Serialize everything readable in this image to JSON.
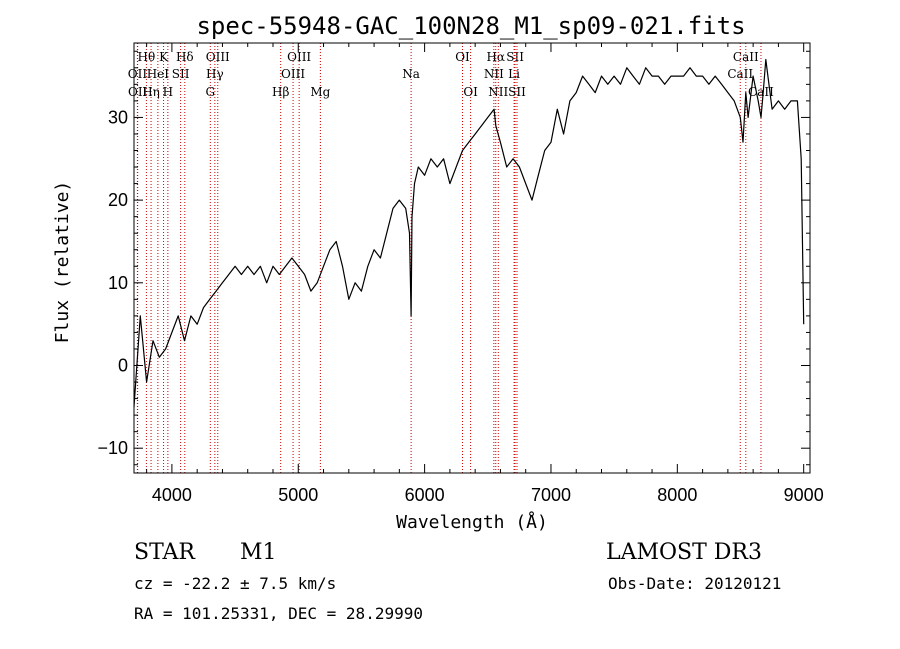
{
  "chart_data": {
    "type": "line",
    "title": "spec-55948-GAC_100N28_M1_sp09-021.fits",
    "xlabel": "Wavelength (Å)",
    "ylabel": "Flux (relative)",
    "xlim": [
      3700,
      9050
    ],
    "ylim": [
      -13,
      39
    ],
    "xticks": [
      4000,
      5000,
      6000,
      7000,
      8000,
      9000
    ],
    "yticks": [
      -10,
      0,
      10,
      20,
      30
    ],
    "series": [
      {
        "name": "flux",
        "color": "#000000",
        "x": [
          3700,
          3750,
          3800,
          3850,
          3900,
          3950,
          4000,
          4050,
          4100,
          4150,
          4200,
          4250,
          4300,
          4350,
          4400,
          4450,
          4500,
          4550,
          4600,
          4650,
          4700,
          4750,
          4800,
          4850,
          4900,
          4950,
          5000,
          5050,
          5100,
          5150,
          5200,
          5250,
          5300,
          5350,
          5400,
          5450,
          5500,
          5550,
          5600,
          5650,
          5700,
          5750,
          5800,
          5850,
          5880,
          5893,
          5900,
          5920,
          5950,
          6000,
          6050,
          6100,
          6150,
          6200,
          6250,
          6300,
          6350,
          6400,
          6450,
          6500,
          6550,
          6563,
          6600,
          6650,
          6700,
          6750,
          6800,
          6850,
          6900,
          6950,
          7000,
          7050,
          7100,
          7150,
          7200,
          7250,
          7300,
          7350,
          7400,
          7450,
          7500,
          7550,
          7600,
          7650,
          7700,
          7750,
          7800,
          7850,
          7900,
          7950,
          8000,
          8050,
          8100,
          8150,
          8200,
          8250,
          8300,
          8350,
          8400,
          8450,
          8498,
          8520,
          8542,
          8560,
          8600,
          8640,
          8662,
          8680,
          8700,
          8750,
          8800,
          8850,
          8900,
          8950,
          8980,
          9000
        ],
        "y": [
          -5,
          6,
          -2,
          3,
          1,
          2,
          4,
          6,
          3,
          6,
          5,
          7,
          8,
          9,
          10,
          11,
          12,
          11,
          12,
          11,
          12,
          10,
          12,
          11,
          12,
          13,
          12,
          11,
          9,
          10,
          12,
          14,
          15,
          12,
          8,
          10,
          9,
          12,
          14,
          13,
          16,
          19,
          20,
          19,
          16,
          6,
          18,
          22,
          24,
          23,
          25,
          24,
          25,
          22,
          24,
          26,
          27,
          28,
          29,
          30,
          31,
          29,
          27,
          24,
          25,
          24,
          22,
          20,
          23,
          26,
          27,
          31,
          28,
          32,
          33,
          35,
          34,
          33,
          35,
          34,
          35,
          34,
          36,
          35,
          34,
          36,
          35,
          35,
          34,
          35,
          35,
          35,
          36,
          35,
          35,
          34,
          35,
          34,
          33,
          32,
          30,
          27,
          33,
          30,
          35,
          32,
          30,
          33,
          37,
          31,
          32,
          31,
          32,
          32,
          25,
          5
        ]
      }
    ],
    "lines": [
      {
        "label": "Hθ",
        "wave": 3798,
        "row": 0
      },
      {
        "label": "OII",
        "wave": 3727,
        "row": 1
      },
      {
        "label": "OII",
        "wave": 3729,
        "row": 2
      },
      {
        "label": "Hη",
        "wave": 3835,
        "row": 2
      },
      {
        "label": "K",
        "wave": 3934,
        "row": 0
      },
      {
        "label": "HeI",
        "wave": 3889,
        "row": 1
      },
      {
        "label": "H",
        "wave": 3968,
        "row": 2
      },
      {
        "label": "Hδ",
        "wave": 4102,
        "row": 0
      },
      {
        "label": "SII",
        "wave": 4069,
        "row": 1
      },
      {
        "label": "OIII",
        "wave": 4363,
        "row": 0
      },
      {
        "label": "Hγ",
        "wave": 4340,
        "row": 1
      },
      {
        "label": "G",
        "wave": 4304,
        "row": 2
      },
      {
        "label": "Hβ",
        "wave": 4861,
        "row": 2
      },
      {
        "label": "OIII",
        "wave": 5007,
        "row": 0
      },
      {
        "label": "OIII",
        "wave": 4959,
        "row": 1
      },
      {
        "label": "Mg",
        "wave": 5175,
        "row": 2
      },
      {
        "label": "Na",
        "wave": 5893,
        "row": 1
      },
      {
        "label": "OI",
        "wave": 6300,
        "row": 0
      },
      {
        "label": "OI",
        "wave": 6364,
        "row": 2
      },
      {
        "label": "Hα",
        "wave": 6563,
        "row": 0
      },
      {
        "label": "NII",
        "wave": 6548,
        "row": 1
      },
      {
        "label": "NII",
        "wave": 6583,
        "row": 2
      },
      {
        "label": "SII",
        "wave": 6716,
        "row": 0
      },
      {
        "label": "Li",
        "wave": 6708,
        "row": 1
      },
      {
        "label": "SII",
        "wave": 6731,
        "row": 2
      },
      {
        "label": "CaII",
        "wave": 8542,
        "row": 0
      },
      {
        "label": "CaII",
        "wave": 8498,
        "row": 1
      },
      {
        "label": "CaII",
        "wave": 8662,
        "row": 2
      }
    ],
    "line_color": "#cc0000"
  },
  "info": {
    "object_class": "STAR",
    "subclass": "M1",
    "survey": "LAMOST DR3",
    "velocity": "cz = -22.2 ± 7.5 km/s",
    "obs_date": "Obs-Date: 20120121",
    "coords": "RA = 101.25331, DEC =  28.29990"
  }
}
